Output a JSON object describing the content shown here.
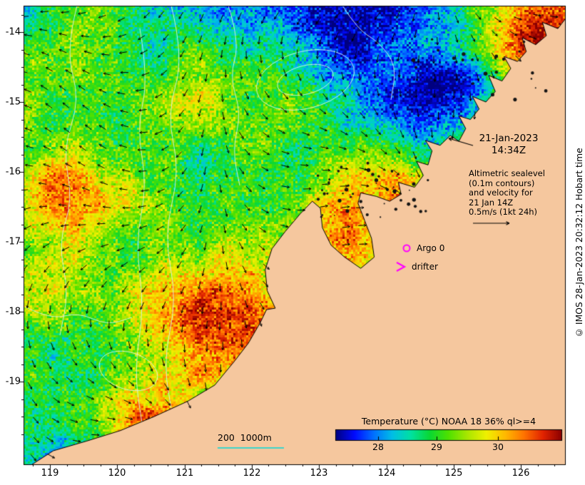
{
  "figure": {
    "axes": {
      "x_ticks": [
        "119",
        "120",
        "121",
        "122",
        "123",
        "124",
        "125",
        "126"
      ],
      "y_ticks": [
        "-14",
        "-15",
        "-16",
        "-17",
        "-18",
        "-19"
      ]
    },
    "annotations": {
      "datetime": {
        "line1": "21-Jan-2023",
        "line2": "14:34Z"
      },
      "altimetric": [
        "Altimetric sealevel",
        "(0.1m contours)",
        "and velocity for",
        "21 Jan 14Z",
        "0.5m/s (1kt 24h)"
      ],
      "argo_label": "Argo 0",
      "drifter_label": "drifter",
      "depth_scale_label": "200  1000m"
    },
    "colorbar": {
      "title": "Temperature (°C) NOAA 18 36% ql>=4",
      "tick_labels": [
        "28",
        "29",
        "30"
      ]
    },
    "credit": "© IMOS 28-Jan-2023 20:32:12 Hobart time",
    "colors": {
      "background": "#ffffff",
      "frame": "#000000",
      "land": "#f5c79e",
      "arrow": "#000000",
      "contour": "#d9f3ec",
      "depth_line": "#00d9d9",
      "marker": "#ff00ff",
      "palette": [
        "#000080",
        "#000aff",
        "#006eff",
        "#00bee6",
        "#00e1a0",
        "#0ad732",
        "#50e100",
        "#aae600",
        "#f0f000",
        "#ffb900",
        "#ff7300",
        "#e12300",
        "#8a0000"
      ]
    }
  }
}
